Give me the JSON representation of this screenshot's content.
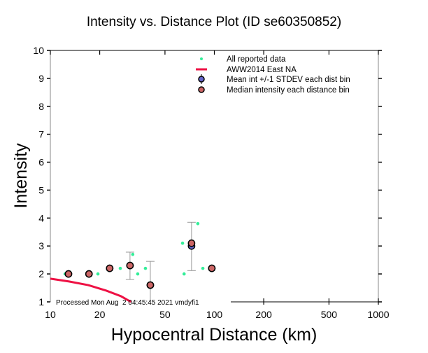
{
  "chart_data": {
    "type": "scatter",
    "title": "Intensity vs. Distance Plot (ID se60350852)",
    "xlabel": "Hypocentral Distance (km)",
    "ylabel": "Intensity",
    "xscale": "log",
    "xlim": [
      10,
      1000
    ],
    "ylim": [
      1,
      10
    ],
    "xticks": [
      10,
      20,
      50,
      100,
      200,
      500,
      1000
    ],
    "xtick_labels": [
      "10",
      "20",
      "50",
      "100",
      "200",
      "500",
      "1000"
    ],
    "yticks": [
      1,
      2,
      3,
      4,
      5,
      6,
      7,
      8,
      9,
      10
    ],
    "ytick_labels": [
      "1",
      "2",
      "3",
      "4",
      "5",
      "6",
      "7",
      "8",
      "9",
      "10"
    ],
    "grid": false,
    "legend_position": "top-right",
    "legend": [
      {
        "label": "All reported data",
        "marker": "dot",
        "color": "#33ee99"
      },
      {
        "label": "AWW2014 East NA",
        "marker": "line",
        "color": "#ee1144"
      },
      {
        "label": "Mean int +/-1 STDEV each dist bin",
        "marker": "circle-errorbar",
        "color": "#6666cc"
      },
      {
        "label": "Median intensity each distance bin",
        "marker": "circle",
        "color": "#cc6666"
      }
    ],
    "series": [
      {
        "name": "All reported data",
        "color": "#33ee99",
        "points": [
          {
            "x": 12.3,
            "y": 2.0
          },
          {
            "x": 19.5,
            "y": 2.0
          },
          {
            "x": 26.7,
            "y": 2.2
          },
          {
            "x": 31.8,
            "y": 2.7
          },
          {
            "x": 34.1,
            "y": 2.0
          },
          {
            "x": 38.0,
            "y": 2.2
          },
          {
            "x": 64.0,
            "y": 3.1
          },
          {
            "x": 65.4,
            "y": 2.0
          },
          {
            "x": 79.3,
            "y": 3.8
          },
          {
            "x": 85.1,
            "y": 2.2
          }
        ]
      },
      {
        "name": "AWW2014 East NA",
        "color": "#ee1144",
        "points": [
          {
            "x": 10,
            "y": 1.83
          },
          {
            "x": 13,
            "y": 1.73
          },
          {
            "x": 17,
            "y": 1.6
          },
          {
            "x": 22,
            "y": 1.4
          },
          {
            "x": 27,
            "y": 1.2
          },
          {
            "x": 31,
            "y": 1.0
          }
        ]
      },
      {
        "name": "Mean int +/-1 STDEV each dist bin",
        "color": "#6666cc",
        "points": [
          {
            "x": 12.9,
            "y": 2.0,
            "err_low": 2.0,
            "err_high": 2.0
          },
          {
            "x": 17.2,
            "y": 2.0,
            "err_low": 2.0,
            "err_high": 2.0
          },
          {
            "x": 23.0,
            "y": 2.2,
            "err_low": 2.2,
            "err_high": 2.2
          },
          {
            "x": 30.6,
            "y": 2.3,
            "err_low": 1.8,
            "err_high": 2.78
          },
          {
            "x": 40.7,
            "y": 1.6,
            "err_low": 1.0,
            "err_high": 2.45
          },
          {
            "x": 72.6,
            "y": 3.0,
            "err_low": 2.12,
            "err_high": 3.85
          },
          {
            "x": 96.5,
            "y": 2.2,
            "err_low": 2.2,
            "err_high": 2.2
          }
        ]
      },
      {
        "name": "Median intensity each distance bin",
        "color": "#cc6666",
        "points": [
          {
            "x": 12.9,
            "y": 2.0
          },
          {
            "x": 17.2,
            "y": 2.0
          },
          {
            "x": 23.0,
            "y": 2.2
          },
          {
            "x": 30.6,
            "y": 2.3
          },
          {
            "x": 40.7,
            "y": 1.6
          },
          {
            "x": 72.6,
            "y": 3.1
          },
          {
            "x": 96.5,
            "y": 2.2
          }
        ]
      }
    ],
    "annotation": "Processed Mon Aug  2 04:45:45 2021 vmdyfi1"
  }
}
